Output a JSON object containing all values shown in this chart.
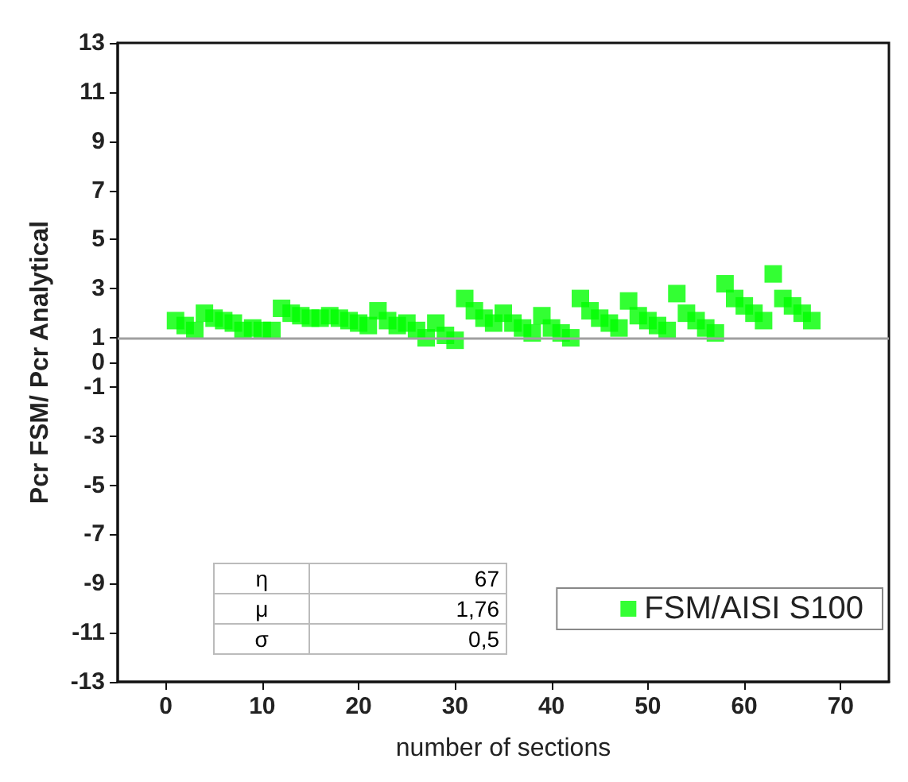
{
  "chart_data": {
    "type": "scatter",
    "xlabel": "number of sections",
    "ylabel": "Pcr FSM/ Pcr Analytical",
    "x": [
      1,
      2,
      3,
      4,
      5,
      6,
      7,
      8,
      9,
      10,
      11,
      12,
      13,
      14,
      15,
      16,
      17,
      18,
      19,
      20,
      21,
      22,
      23,
      24,
      25,
      26,
      27,
      28,
      29,
      30,
      31,
      32,
      33,
      34,
      35,
      36,
      37,
      38,
      39,
      40,
      41,
      42,
      43,
      44,
      45,
      46,
      47,
      48,
      49,
      50,
      51,
      52,
      53,
      54,
      55,
      56,
      57,
      58,
      59,
      60,
      61,
      62,
      63,
      64,
      65,
      66,
      67
    ],
    "series": [
      {
        "name": "FSM/AISI S100",
        "color": "#00ff00",
        "values": [
          1.7,
          1.5,
          1.3,
          2.0,
          1.8,
          1.7,
          1.6,
          1.3,
          1.4,
          1.3,
          1.3,
          2.2,
          2.0,
          1.9,
          1.8,
          1.8,
          1.9,
          1.8,
          1.7,
          1.6,
          1.5,
          2.1,
          1.7,
          1.5,
          1.6,
          1.3,
          1.0,
          1.6,
          1.1,
          0.9,
          2.6,
          2.1,
          1.8,
          1.6,
          2.0,
          1.6,
          1.4,
          1.2,
          1.9,
          1.4,
          1.2,
          1.0,
          2.6,
          2.1,
          1.8,
          1.6,
          1.4,
          2.5,
          1.9,
          1.7,
          1.5,
          1.3,
          2.8,
          2.0,
          1.7,
          1.4,
          1.2,
          3.2,
          2.6,
          2.3,
          2.0,
          1.7,
          3.6,
          2.6,
          2.3,
          2.0,
          1.7
        ]
      }
    ],
    "xlim": [
      -5,
      75
    ],
    "xticks": [
      0,
      10,
      20,
      30,
      40,
      50,
      60,
      70
    ],
    "ylim": [
      -13,
      13
    ],
    "yticks": [
      -13,
      -11,
      -9,
      -7,
      -5,
      -3,
      -1,
      0,
      1,
      3,
      5,
      7,
      9,
      11,
      13
    ],
    "ref_lines": [
      {
        "axis": "y",
        "value": 1,
        "color": "#a0a0a0"
      }
    ],
    "annotations": [
      "η",
      "67",
      "μ",
      "1,76",
      "σ",
      "0,5"
    ],
    "marker": "square",
    "legend": "bottom right",
    "grid": false
  }
}
